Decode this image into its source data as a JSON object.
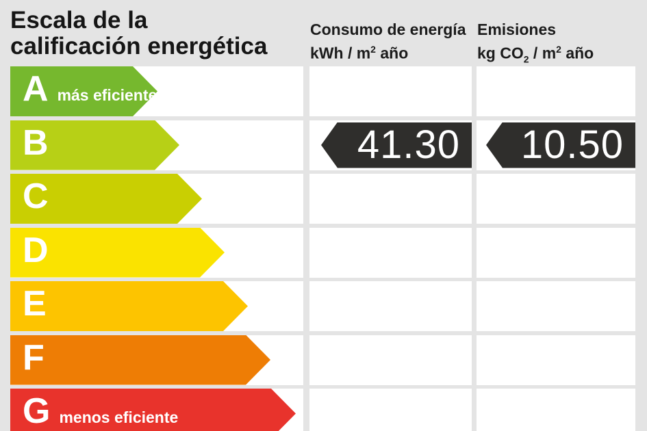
{
  "canvas_bg": "#e4e4e4",
  "page": {
    "title_line1": "Escala de la",
    "title_line2": "calificación energética"
  },
  "columns": {
    "consumo": {
      "title": "Consumo de energía",
      "unit_pre": "kWh / m",
      "unit_sup": "2",
      "unit_post": " año"
    },
    "emisiones": {
      "title": "Emisiones",
      "unit_pre": "kg CO",
      "unit_sub": "2",
      "unit_mid": " / m",
      "unit_sup": "2",
      "unit_post": " año"
    }
  },
  "scale": {
    "rows": [
      {
        "letter": "A",
        "note": "más eficiente",
        "color": "#76b82e"
      },
      {
        "letter": "B",
        "note": "",
        "color": "#b7d016"
      },
      {
        "letter": "C",
        "note": "",
        "color": "#c9cf02"
      },
      {
        "letter": "D",
        "note": "",
        "color": "#fae300"
      },
      {
        "letter": "E",
        "note": "",
        "color": "#fdc400"
      },
      {
        "letter": "F",
        "note": "",
        "color": "#ee7d05"
      },
      {
        "letter": "G",
        "note": "menos eficiente",
        "color": "#e8332c"
      }
    ]
  },
  "rating": {
    "letter": "B",
    "consumo_value": "41.30",
    "emisiones_value": "10.50",
    "arrow_color": "#2f2e2c"
  },
  "chart_data": {
    "type": "bar",
    "title": "Escala de la calificación energética",
    "categories": [
      "A",
      "B",
      "C",
      "D",
      "E",
      "F",
      "G"
    ],
    "category_notes": {
      "A": "más eficiente",
      "G": "menos eficiente"
    },
    "bar_colors": [
      "#76b82e",
      "#b7d016",
      "#c9cf02",
      "#fae300",
      "#fdc400",
      "#ee7d05",
      "#e8332c"
    ],
    "bar_relative_lengths": [
      215,
      247,
      280,
      313,
      347,
      380,
      417
    ],
    "assigned_rating": "B",
    "series": [
      {
        "name": "Consumo de energía kWh / m2 año",
        "rating": "B",
        "value": 41.3
      },
      {
        "name": "Emisiones kg CO2 / m2 año",
        "rating": "B",
        "value": 10.5
      }
    ],
    "legend_position": "none",
    "grid": false
  }
}
